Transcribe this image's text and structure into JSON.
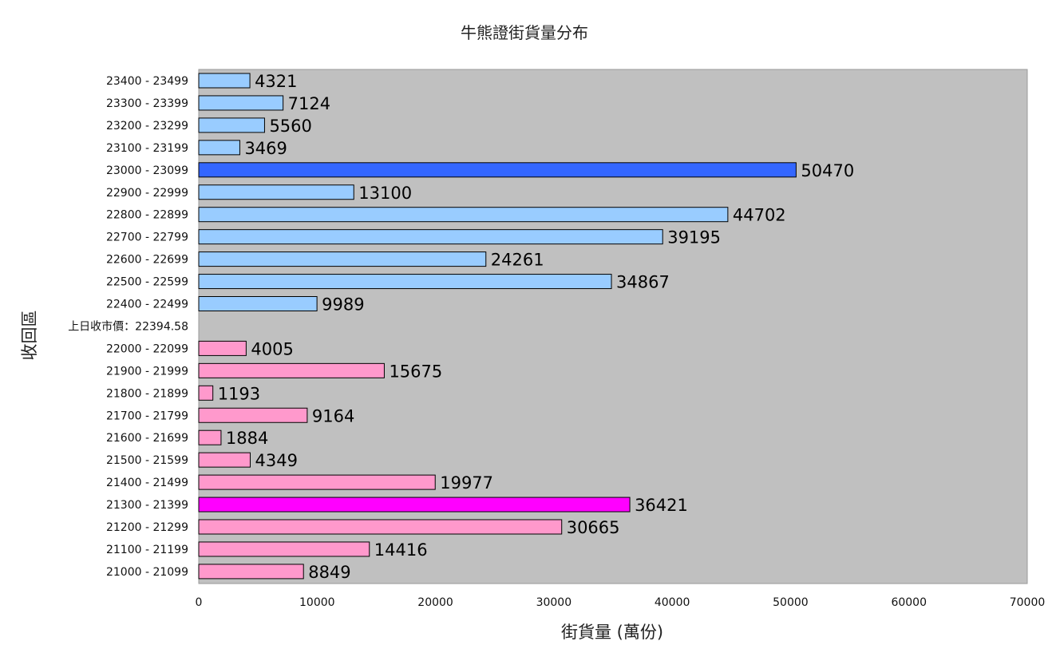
{
  "chart_data": {
    "type": "bar",
    "orientation": "horizontal",
    "title": "牛熊證街貨量分布",
    "xlabel": "街貨量 (萬份)",
    "ylabel": "收回區",
    "xlim": [
      0,
      70000
    ],
    "xticks": [
      0,
      10000,
      20000,
      30000,
      40000,
      50000,
      60000,
      70000
    ],
    "background_color": "#c0c0c0",
    "bull_color": "#ff99cc",
    "bear_color": "#99ccff",
    "bull_highlight_color": "#ff00ff",
    "bear_highlight_color": "#3366ff",
    "reference": {
      "label": "上日收市價：22394.58",
      "value": 22394.58
    },
    "bear_categories": [
      {
        "range": "23400 - 23499",
        "value": 4321
      },
      {
        "range": "23300 - 23399",
        "value": 7124
      },
      {
        "range": "23200 - 23299",
        "value": 5560
      },
      {
        "range": "23100 - 23199",
        "value": 3469
      },
      {
        "range": "23000 - 23099",
        "value": 50470,
        "highlight": true
      },
      {
        "range": "22900 - 22999",
        "value": 13100
      },
      {
        "range": "22800 - 22899",
        "value": 44702
      },
      {
        "range": "22700 - 22799",
        "value": 39195
      },
      {
        "range": "22600 - 22699",
        "value": 24261
      },
      {
        "range": "22500 - 22599",
        "value": 34867
      },
      {
        "range": "22400 - 22499",
        "value": 9989
      }
    ],
    "bull_categories": [
      {
        "range": "22000 - 22099",
        "value": 4005
      },
      {
        "range": "21900 - 21999",
        "value": 15675
      },
      {
        "range": "21800 - 21899",
        "value": 1193
      },
      {
        "range": "21700 - 21799",
        "value": 9164
      },
      {
        "range": "21600 - 21699",
        "value": 1884
      },
      {
        "range": "21500 - 21599",
        "value": 4349
      },
      {
        "range": "21400 - 21499",
        "value": 19977
      },
      {
        "range": "21300 - 21399",
        "value": 36421,
        "highlight": true
      },
      {
        "range": "21200 - 21299",
        "value": 30665
      },
      {
        "range": "21100 - 21199",
        "value": 14416
      },
      {
        "range": "21000 - 21099",
        "value": 8849
      }
    ]
  }
}
